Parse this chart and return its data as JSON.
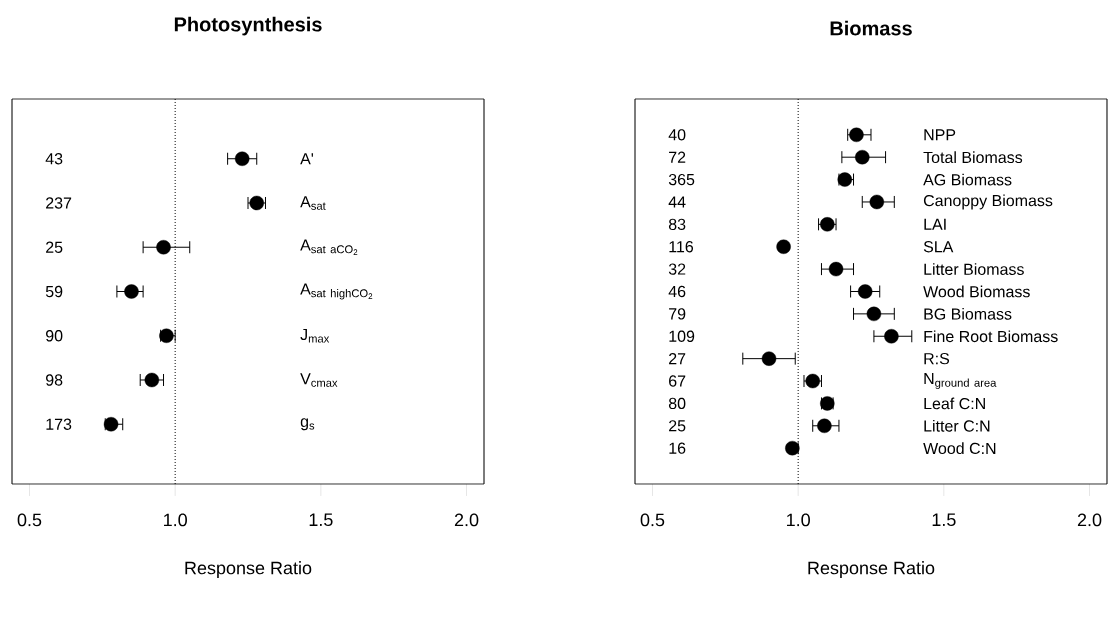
{
  "chart_data": [
    {
      "type": "scatter",
      "orientation": "horizontal",
      "title": "Photosynthesis",
      "xlabel": "Response Ratio",
      "categories": [
        "A'",
        "A$_{sat}$",
        "\\mathrm{A_{sat\\ aCO_{2}}}",
        "\\mathrm{A_{sat\\ highCO_{2}}}",
        "J$_{max}$",
        "V$_{cmax}$",
        "g$_{s}$"
      ],
      "values": [
        1.23,
        1.28,
        0.96,
        0.85,
        0.97,
        0.92,
        0.78
      ],
      "errors": [
        [
          1.18,
          1.28
        ],
        [
          1.25,
          1.31
        ],
        [
          0.89,
          1.05
        ],
        [
          0.8,
          0.89
        ],
        [
          0.95,
          1.0
        ],
        [
          0.88,
          0.96
        ],
        [
          0.76,
          0.82
        ]
      ],
      "color": "#000000",
      "marker": "circle",
      "xlim": [
        0.44,
        2.06
      ],
      "xticks": [
        {
          "value": 0.5,
          "label": "0.5"
        },
        {
          "value": 1.0,
          "label": "1.0"
        },
        {
          "value": 1.5,
          "label": "1.5"
        },
        {
          "value": 2.0,
          "label": "2.0"
        }
      ],
      "ref_lines": [
        {
          "axis": "x",
          "value": 1.0,
          "line_style": "dotted",
          "color": "#000000"
        }
      ],
      "annotations": [
        "43",
        "237",
        "25",
        "59",
        "90",
        "98",
        "173"
      ]
    },
    {
      "type": "scatter",
      "orientation": "horizontal",
      "title": "Biomass",
      "xlabel": "Response Ratio",
      "categories": [
        "NPP",
        "Total Biomass",
        "AG Biomass",
        "Canoppy Biomass",
        "LAI",
        "SLA",
        "Litter Biomass",
        "Wood Biomass",
        "BG Biomass",
        "Fine Root Biomass",
        "R:S",
        "\\mathrm{N_{ground\\ area}}",
        "Leaf C:N",
        "Litter C:N",
        "Wood C:N"
      ],
      "values": [
        1.2,
        1.22,
        1.16,
        1.27,
        1.1,
        0.95,
        1.13,
        1.23,
        1.26,
        1.32,
        0.9,
        1.05,
        1.1,
        1.09,
        0.98
      ],
      "errors": [
        [
          1.17,
          1.25
        ],
        [
          1.15,
          1.3
        ],
        [
          1.14,
          1.19
        ],
        [
          1.22,
          1.33
        ],
        [
          1.07,
          1.13
        ],
        [
          0.94,
          0.96
        ],
        [
          1.08,
          1.19
        ],
        [
          1.18,
          1.28
        ],
        [
          1.19,
          1.33
        ],
        [
          1.26,
          1.39
        ],
        [
          0.81,
          0.99
        ],
        [
          1.02,
          1.08
        ],
        [
          1.08,
          1.12
        ],
        [
          1.05,
          1.14
        ],
        [
          0.97,
          1.0
        ]
      ],
      "color": "#000000",
      "marker": "circle",
      "xlim": [
        0.44,
        2.06
      ],
      "xticks": [
        {
          "value": 0.5,
          "label": "0.5"
        },
        {
          "value": 1.0,
          "label": "1.0"
        },
        {
          "value": 1.5,
          "label": "1.5"
        },
        {
          "value": 2.0,
          "label": "2.0"
        }
      ],
      "ref_lines": [
        {
          "axis": "x",
          "value": 1.0,
          "line_style": "dotted",
          "color": "#000000"
        }
      ],
      "annotations": [
        "40",
        "72",
        "365",
        "44",
        "83",
        "116",
        "32",
        "46",
        "79",
        "109",
        "27",
        "67",
        "80",
        "25",
        "16"
      ]
    }
  ]
}
